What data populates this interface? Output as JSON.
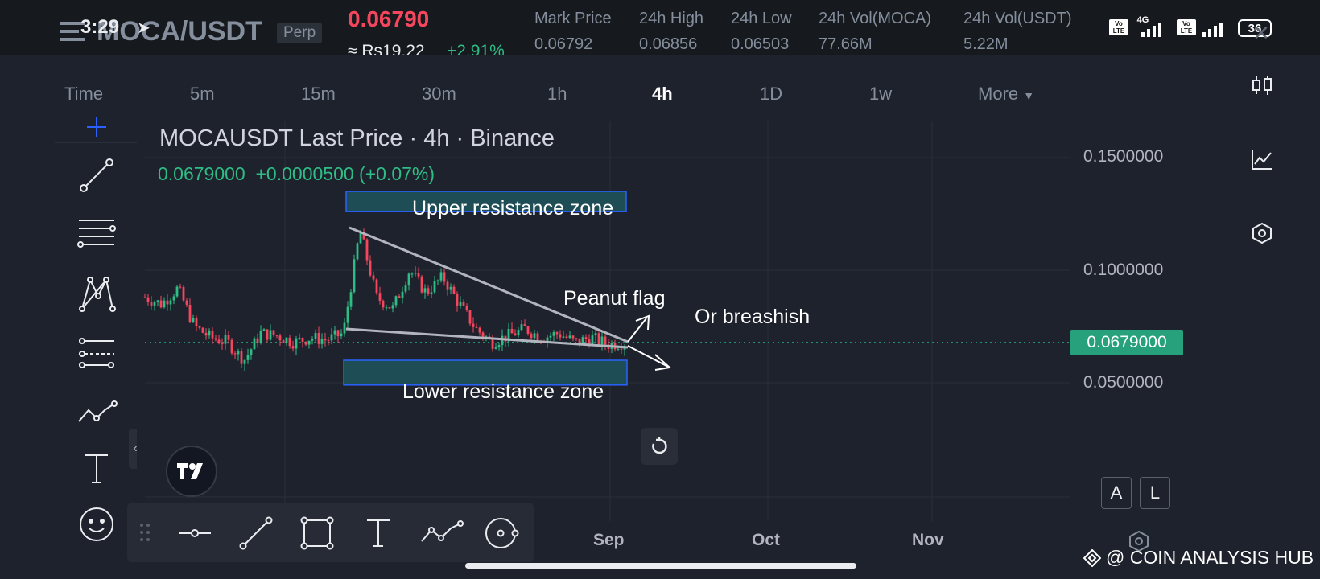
{
  "status_bar": {
    "time": "3:29",
    "signal_4g": "4G",
    "battery": "36",
    "volte_1": "Vo LTE",
    "volte_2": "Vo LTE"
  },
  "header": {
    "pair": "MOCA/USDT",
    "contract_type": "Perp",
    "last_price": "0.06790",
    "fiat_price": "≈ Rs19.22",
    "change_pct": "+2.91%",
    "stats": [
      {
        "label": "Mark Price",
        "value": "0.06792"
      },
      {
        "label": "24h High",
        "value": "0.06856"
      },
      {
        "label": "24h Low",
        "value": "0.06503"
      },
      {
        "label": "24h Vol(MOCA)",
        "value": "77.66M"
      },
      {
        "label": "24h Vol(USDT)",
        "value": "5.22M"
      }
    ]
  },
  "timeframes": {
    "items": [
      "Time",
      "5m",
      "15m",
      "30m",
      "1h",
      "4h",
      "1D",
      "1w",
      "More"
    ],
    "active": "4h"
  },
  "legend": {
    "title": "MOCAUSDT Last Price · 4h · Binance",
    "values": "0.0679000  +0.0000500 (+0.07%)"
  },
  "annotations": {
    "upper_zone": "Upper resistance zone",
    "lower_zone": "Lower resistance zone",
    "flag": "Peanut flag",
    "bearish": "Or breashish"
  },
  "price_axis": {
    "ticks": [
      "0.1500000",
      "0.1000000",
      "0.0500000"
    ],
    "current": "0.0679000"
  },
  "time_axis": {
    "ticks": [
      "Sep",
      "Oct",
      "Nov"
    ]
  },
  "scale_buttons": {
    "auto": "A",
    "log": "L"
  },
  "watermark": "@ COIN ANALYSIS HUB",
  "colors": {
    "up": "#2ebd85",
    "down": "#f6465d",
    "zone_fill": "#1f4d55",
    "zone_border": "#2962ff",
    "price_tag": "#26a17b"
  },
  "chart_data": {
    "type": "candlestick",
    "title": "MOCAUSDT Last Price · 4h · Binance",
    "ylim": [
      0.02,
      0.16
    ],
    "x_ticks": [
      "Sep",
      "Oct",
      "Nov"
    ],
    "last_price": 0.0679,
    "upper_resistance_zone": [
      0.126,
      0.135
    ],
    "lower_resistance_zone": [
      0.049,
      0.06
    ],
    "approx_path": [
      0.088,
      0.085,
      0.092,
      0.075,
      0.07,
      0.068,
      0.06,
      0.072,
      0.071,
      0.068,
      0.07,
      0.069,
      0.072,
      0.118,
      0.088,
      0.083,
      0.1,
      0.09,
      0.097,
      0.085,
      0.074,
      0.068,
      0.071,
      0.074,
      0.07,
      0.072,
      0.068,
      0.07,
      0.067,
      0.0679
    ]
  }
}
